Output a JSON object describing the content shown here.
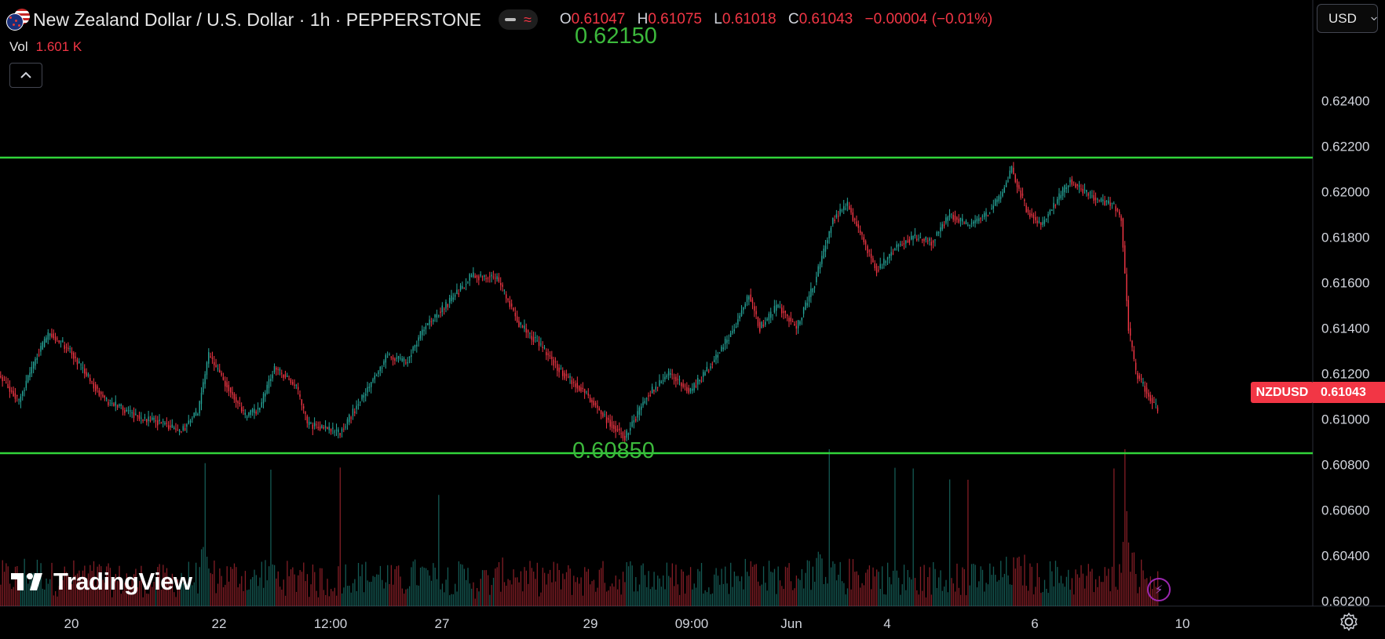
{
  "header": {
    "title": "New Zealand Dollar / U.S. Dollar · 1h · PEPPERSTONE",
    "ohlc": [
      {
        "key": "O",
        "value": "0.61047"
      },
      {
        "key": "H",
        "value": "0.61075"
      },
      {
        "key": "L",
        "value": "0.61018"
      },
      {
        "key": "C",
        "value": "0.61043"
      }
    ],
    "change": "−0.00004 (−0.01%)",
    "icons": [
      "nzd-flag-icon",
      "usd-flag-icon",
      "indicator-dash-icon",
      "wave-icon"
    ]
  },
  "volume": {
    "label": "Vol",
    "value": "1.601 K"
  },
  "currency_selector": {
    "label": "USD",
    "icon": "chevron-down-icon"
  },
  "levels": {
    "upper": {
      "label": "0.62150",
      "value": 0.6215
    },
    "lower": {
      "label": "0.60850",
      "value": 0.6085
    }
  },
  "last_price": {
    "symbol": "NZDUSD",
    "value": "0.61043"
  },
  "branding": {
    "name": "TradingView"
  },
  "colors": {
    "bull": "#26a69a",
    "bear": "#f23645",
    "level_line": "#31d43a",
    "level_text": "#3cb93c",
    "axis_text": "#d1d4dc",
    "background": "#000000"
  },
  "chart_data": {
    "type": "candlestick",
    "symbol": "NZDUSD",
    "interval": "1h",
    "x_ticks": [
      "20",
      "22",
      "12:00",
      "27",
      "29",
      "09:00",
      "Jun",
      "4",
      "6",
      "10"
    ],
    "y_ticks": [
      "0.62400",
      "0.62200",
      "0.62000",
      "0.61800",
      "0.61600",
      "0.61400",
      "0.61200",
      "0.61000",
      "0.60800",
      "0.60600",
      "0.60400",
      "0.60200"
    ],
    "ylim": [
      0.6015,
      0.6255
    ],
    "horizontal_lines": [
      0.6215,
      0.6085
    ],
    "close_path": [
      [
        0,
        0.6118
      ],
      [
        10,
        0.6108
      ],
      [
        20,
        0.6128
      ],
      [
        27,
        0.6138
      ],
      [
        38,
        0.613
      ],
      [
        48,
        0.6118
      ],
      [
        58,
        0.6108
      ],
      [
        68,
        0.6104
      ],
      [
        78,
        0.61
      ],
      [
        90,
        0.6098
      ],
      [
        98,
        0.6094
      ],
      [
        108,
        0.6103
      ],
      [
        114,
        0.6128
      ],
      [
        126,
        0.6112
      ],
      [
        134,
        0.6101
      ],
      [
        142,
        0.6105
      ],
      [
        150,
        0.6123
      ],
      [
        162,
        0.6114
      ],
      [
        168,
        0.6098
      ],
      [
        178,
        0.6096
      ],
      [
        186,
        0.6094
      ],
      [
        200,
        0.6112
      ],
      [
        212,
        0.6128
      ],
      [
        222,
        0.6125
      ],
      [
        232,
        0.614
      ],
      [
        244,
        0.615
      ],
      [
        258,
        0.6163
      ],
      [
        272,
        0.6162
      ],
      [
        284,
        0.6142
      ],
      [
        296,
        0.6132
      ],
      [
        308,
        0.612
      ],
      [
        320,
        0.6112
      ],
      [
        332,
        0.61
      ],
      [
        342,
        0.6092
      ],
      [
        354,
        0.611
      ],
      [
        366,
        0.612
      ],
      [
        378,
        0.6112
      ],
      [
        390,
        0.6125
      ],
      [
        402,
        0.614
      ],
      [
        410,
        0.6155
      ],
      [
        416,
        0.614
      ],
      [
        426,
        0.615
      ],
      [
        436,
        0.614
      ],
      [
        446,
        0.616
      ],
      [
        456,
        0.6188
      ],
      [
        464,
        0.6194
      ],
      [
        472,
        0.618
      ],
      [
        480,
        0.6165
      ],
      [
        490,
        0.6175
      ],
      [
        500,
        0.618
      ],
      [
        510,
        0.6178
      ],
      [
        520,
        0.619
      ],
      [
        530,
        0.6185
      ],
      [
        540,
        0.619
      ],
      [
        548,
        0.6198
      ],
      [
        554,
        0.621
      ],
      [
        562,
        0.6192
      ],
      [
        570,
        0.6185
      ],
      [
        578,
        0.6195
      ],
      [
        586,
        0.6205
      ],
      [
        594,
        0.62
      ],
      [
        602,
        0.6196
      ],
      [
        610,
        0.6194
      ],
      [
        614,
        0.6188
      ],
      [
        618,
        0.614
      ],
      [
        622,
        0.612
      ],
      [
        628,
        0.6112
      ],
      [
        634,
        0.6104
      ]
    ],
    "volume_series": "per-bar volume histogram, peaks near bars 454, 490, 530, 610"
  }
}
